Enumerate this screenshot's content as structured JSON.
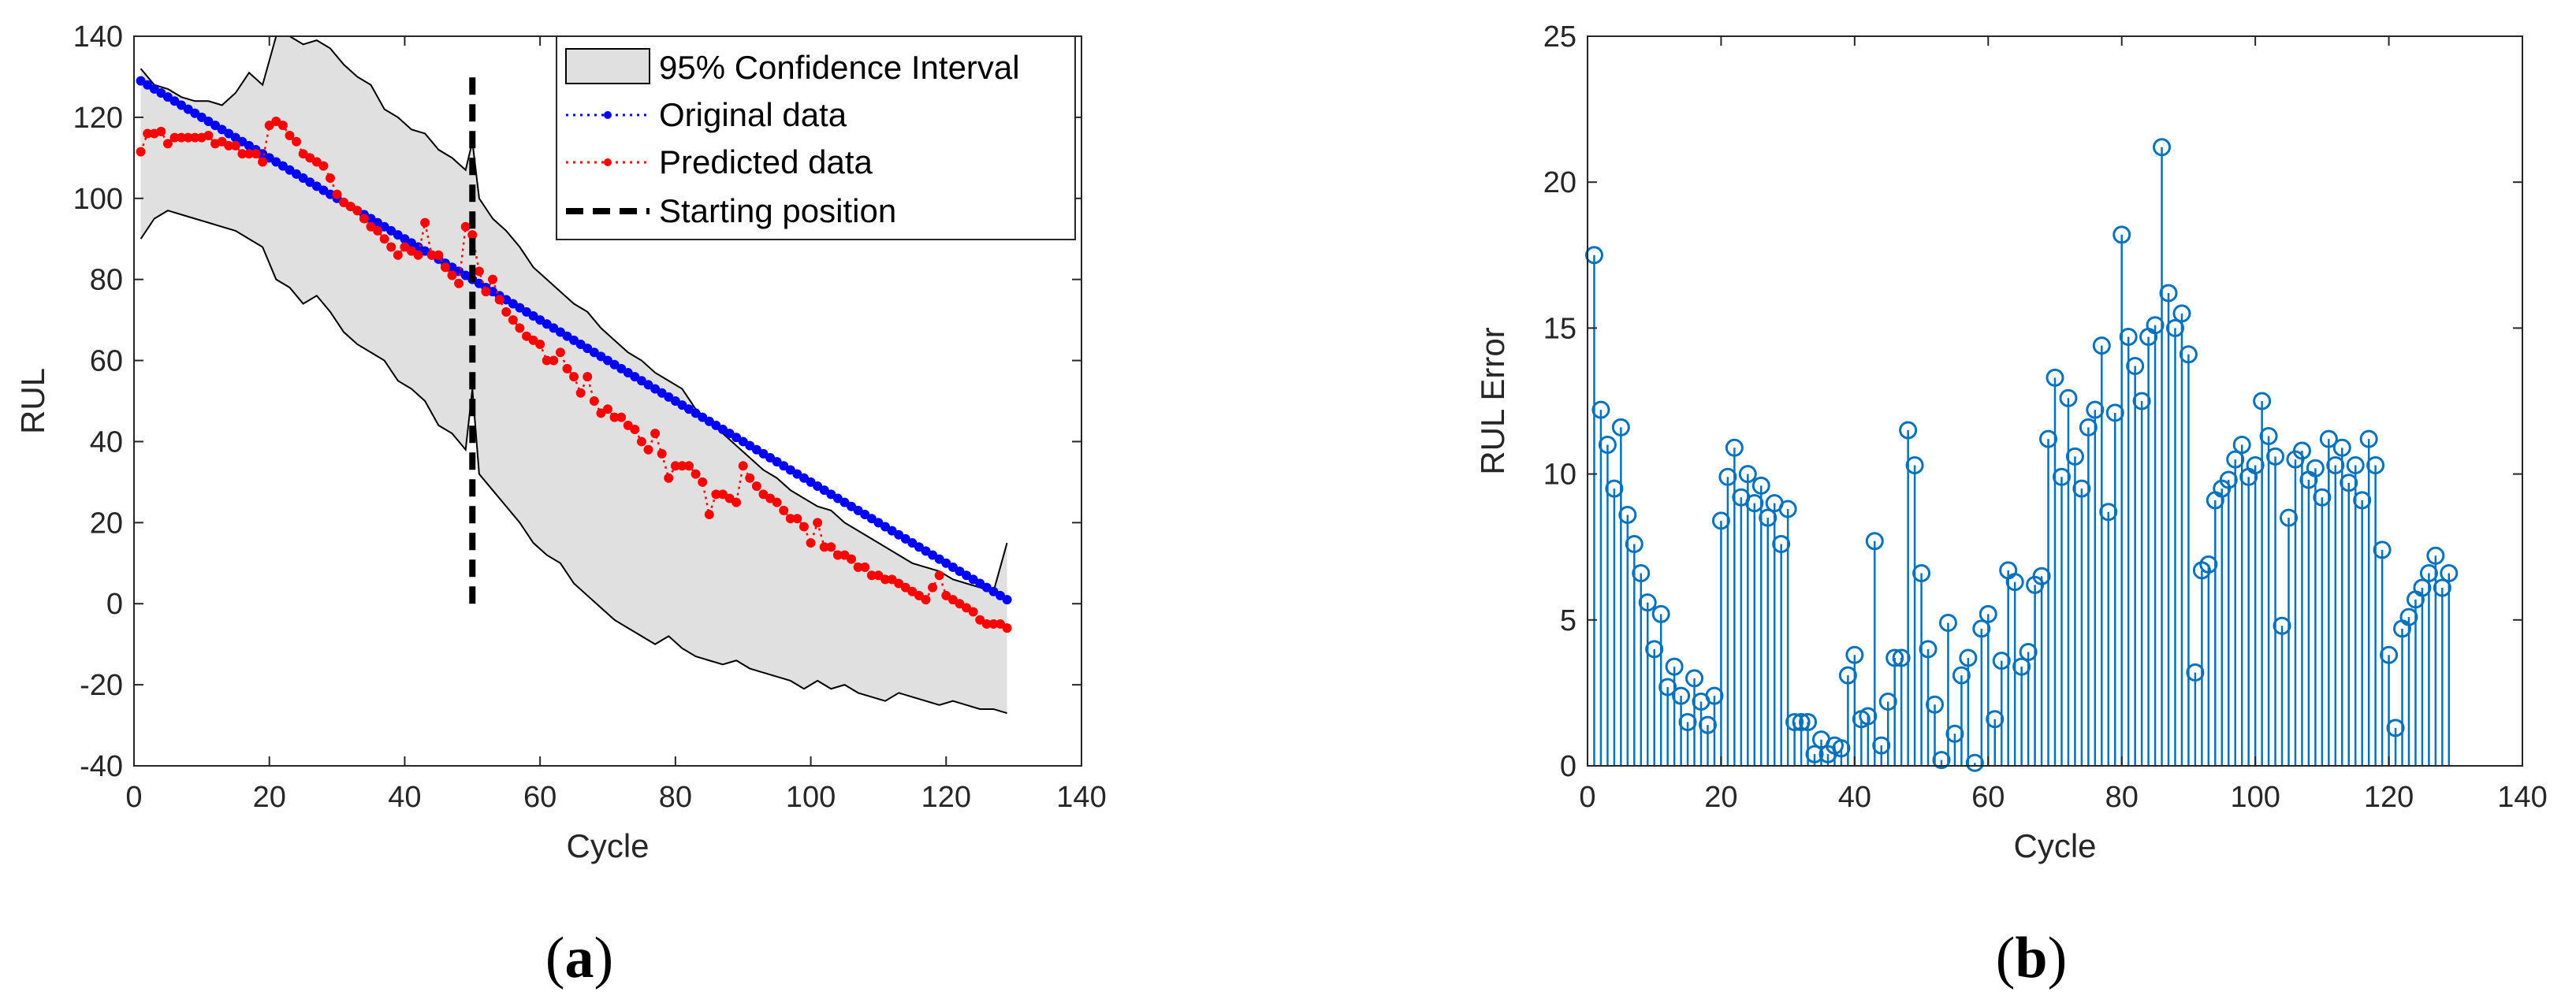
{
  "colors": {
    "original": "#0000ff",
    "predicted": "#ff0000",
    "ci_fill": "#e0e0e0",
    "stem": "#0072bd",
    "axis": "#262626",
    "start": "#000000"
  },
  "chart_data": [
    {
      "type": "line",
      "panel": "a",
      "caption_prefix": "(",
      "caption_letter": "a",
      "caption_suffix": ")",
      "xlabel": "Cycle",
      "ylabel": "RUL",
      "xlim": [
        0,
        140
      ],
      "ylim": [
        -40,
        140
      ],
      "xticks": [
        0,
        20,
        40,
        60,
        80,
        100,
        120,
        140
      ],
      "yticks": [
        -40,
        -20,
        0,
        20,
        40,
        60,
        80,
        100,
        120,
        140
      ],
      "grid": false,
      "legend_position": "top-right",
      "legend": [
        "95% Confidence Interval",
        "Original data",
        "Predicted data",
        "Starting position"
      ],
      "original": {
        "name": "Original data",
        "x_start": 1,
        "x_end": 129,
        "y_start": 129,
        "y_end": 1
      },
      "predicted": {
        "name": "Predicted data",
        "x": [
          1,
          2,
          3,
          4,
          5,
          6,
          7,
          8,
          9,
          10,
          11,
          12,
          13,
          14,
          15,
          16,
          17,
          18,
          19,
          20,
          21,
          22,
          23,
          24,
          25,
          26,
          27,
          28,
          29,
          30,
          31,
          32,
          33,
          34,
          35,
          36,
          37,
          38,
          39,
          40,
          41,
          42,
          43,
          44,
          45,
          46,
          47,
          48,
          49,
          50,
          51,
          52,
          53,
          54,
          55,
          56,
          57,
          58,
          59,
          60,
          61,
          62,
          63,
          64,
          65,
          66,
          67,
          68,
          69,
          70,
          71,
          72,
          73,
          74,
          75,
          76,
          77,
          78,
          79,
          80,
          81,
          82,
          83,
          84,
          85,
          86,
          87,
          88,
          89,
          90,
          91,
          92,
          93,
          94,
          95,
          96,
          97,
          98,
          99,
          100,
          101,
          102,
          103,
          104,
          105,
          106,
          107,
          108,
          109,
          110,
          111,
          112,
          113,
          114,
          115,
          116,
          117,
          118,
          119,
          120,
          121,
          122,
          123,
          124,
          125,
          126,
          127,
          128,
          129
        ],
        "y": [
          111.5,
          116,
          116,
          116.5,
          113.5,
          115,
          115,
          115,
          115,
          115,
          115.5,
          113.5,
          114,
          113,
          113,
          111,
          111,
          111,
          109,
          118,
          119,
          118,
          115.5,
          114,
          111,
          110,
          109,
          108,
          105,
          101,
          99,
          98,
          97,
          95,
          93,
          92,
          90,
          88,
          86,
          88,
          87,
          86,
          94,
          86,
          86,
          83,
          81,
          79,
          93,
          91,
          82,
          77,
          80,
          75,
          72,
          70,
          68,
          66,
          65,
          64,
          60,
          60,
          62,
          58,
          56,
          52,
          56,
          50,
          47,
          48,
          46,
          46,
          44,
          43,
          40,
          38,
          42,
          37,
          31,
          34,
          34,
          34,
          32,
          30,
          22,
          27,
          27,
          26,
          25,
          34,
          31,
          29,
          27,
          26,
          25,
          23,
          21,
          21,
          19,
          15,
          20,
          14,
          14,
          12,
          12,
          11,
          9,
          9,
          7,
          7,
          6,
          6,
          5,
          4,
          3,
          2,
          1,
          4,
          7,
          2,
          1,
          0,
          -1,
          -2,
          -4,
          -5,
          -5,
          -5,
          -6
        ]
      },
      "confidence_interval": {
        "name": "95% Confidence Interval",
        "x": [
          1,
          3,
          5,
          7,
          9,
          11,
          13,
          15,
          17,
          19,
          21,
          23,
          25,
          27,
          29,
          31,
          33,
          35,
          37,
          39,
          41,
          43,
          45,
          47,
          49,
          50,
          51,
          53,
          55,
          57,
          59,
          61,
          63,
          65,
          67,
          69,
          71,
          73,
          75,
          77,
          79,
          81,
          83,
          85,
          87,
          89,
          91,
          93,
          95,
          97,
          99,
          101,
          103,
          105,
          107,
          109,
          111,
          113,
          115,
          117,
          119,
          121,
          123,
          125,
          127,
          129
        ],
        "upper": [
          132,
          128,
          127,
          125,
          124,
          124,
          123,
          126,
          131,
          128,
          142,
          140,
          138,
          139,
          137,
          133,
          130,
          128,
          122,
          120,
          117,
          116,
          112,
          110,
          107,
          114,
          100,
          95,
          92,
          88,
          83,
          80,
          77,
          74,
          72,
          68,
          65,
          62,
          60,
          57,
          55,
          53,
          48,
          45,
          42,
          39,
          36,
          33,
          31,
          28,
          26,
          24,
          23,
          20,
          18,
          16,
          14,
          12,
          10,
          9,
          8,
          6,
          5,
          4,
          3,
          15
        ],
        "lower": [
          90,
          95,
          97,
          96,
          95,
          94,
          93,
          92,
          90,
          88,
          80,
          78,
          74,
          76,
          72,
          67,
          64,
          62,
          60,
          55,
          53,
          50,
          44,
          42,
          38,
          53,
          32,
          28,
          24,
          20,
          15,
          12,
          10,
          5,
          2,
          -1,
          -4,
          -6,
          -8,
          -10,
          -8,
          -11,
          -13,
          -14,
          -15,
          -14,
          -16,
          -17,
          -18,
          -19,
          -21,
          -19,
          -21,
          -20,
          -22,
          -23,
          -24,
          -22,
          -23,
          -24,
          -25,
          -24,
          -25,
          -26,
          -26,
          -27
        ]
      },
      "starting_position": {
        "name": "Starting position",
        "x": 50,
        "y_from": 0,
        "y_to": 130
      }
    },
    {
      "type": "stem",
      "panel": "b",
      "caption_prefix": "(",
      "caption_letter": "b",
      "caption_suffix": ")",
      "xlabel": "Cycle",
      "ylabel": "RUL Error",
      "xlim": [
        0,
        140
      ],
      "ylim": [
        0,
        25
      ],
      "xticks": [
        0,
        20,
        40,
        60,
        80,
        100,
        120,
        140
      ],
      "yticks": [
        0,
        5,
        10,
        15,
        20,
        25
      ],
      "grid": false,
      "x": [
        1,
        2,
        3,
        4,
        5,
        6,
        7,
        8,
        9,
        10,
        11,
        12,
        13,
        14,
        15,
        16,
        17,
        18,
        19,
        20,
        21,
        22,
        23,
        24,
        25,
        26,
        27,
        28,
        29,
        30,
        31,
        32,
        33,
        34,
        35,
        36,
        37,
        38,
        39,
        40,
        41,
        42,
        43,
        44,
        45,
        46,
        47,
        48,
        49,
        50,
        51,
        52,
        53,
        54,
        55,
        56,
        57,
        58,
        59,
        60,
        61,
        62,
        63,
        64,
        65,
        66,
        67,
        68,
        69,
        70,
        71,
        72,
        73,
        74,
        75,
        76,
        77,
        78,
        79,
        80,
        81,
        82,
        83,
        84,
        85,
        86,
        87,
        88,
        89,
        90,
        91,
        92,
        93,
        94,
        95,
        96,
        97,
        98,
        99,
        100,
        101,
        102,
        103,
        104,
        105,
        106,
        107,
        108,
        109,
        110,
        111,
        112,
        113,
        114,
        115,
        116,
        117,
        118,
        119,
        120,
        121,
        122,
        123,
        124,
        125,
        126,
        127,
        128,
        129
      ],
      "values": [
        17.5,
        12.2,
        11,
        9.5,
        11.6,
        8.6,
        7.6,
        6.6,
        5.6,
        4,
        5.2,
        2.7,
        3.4,
        2.4,
        1.5,
        3,
        2.2,
        1.4,
        2.4,
        8.4,
        9.9,
        10.9,
        9.2,
        10,
        9,
        9.6,
        8.5,
        9,
        7.6,
        8.8,
        1.5,
        1.5,
        1.5,
        0.4,
        0.9,
        0.4,
        0.7,
        0.6,
        3.1,
        3.8,
        1.6,
        1.7,
        7.7,
        0.7,
        2.2,
        3.7,
        3.7,
        11.5,
        10.3,
        6.6,
        4,
        2.1,
        0.2,
        4.9,
        1.1,
        3.1,
        3.7,
        0.1,
        4.7,
        5.2,
        1.6,
        3.6,
        6.7,
        6.3,
        3.4,
        3.9,
        6.2,
        6.5,
        11.2,
        13.3,
        9.9,
        12.6,
        10.6,
        9.5,
        11.6,
        12.2,
        14.4,
        8.7,
        12.1,
        18.2,
        14.7,
        13.7,
        12.5,
        14.7,
        15.1,
        21.2,
        16.2,
        15,
        15.5,
        14.1,
        3.2,
        6.7,
        6.9,
        9.1,
        9.5,
        9.8,
        10.5,
        11,
        9.9,
        10.3,
        12.5,
        11.3,
        10.6,
        4.8,
        8.5,
        10.5,
        10.8,
        9.8,
        10.2,
        9.2,
        11.2,
        10.3,
        10.9,
        9.7,
        10.3,
        9.1,
        11.2,
        10.3,
        7.4,
        3.8,
        1.3,
        4.7,
        5.1,
        5.7,
        6.1,
        6.6,
        7.2,
        6.1,
        6.6
      ]
    }
  ]
}
